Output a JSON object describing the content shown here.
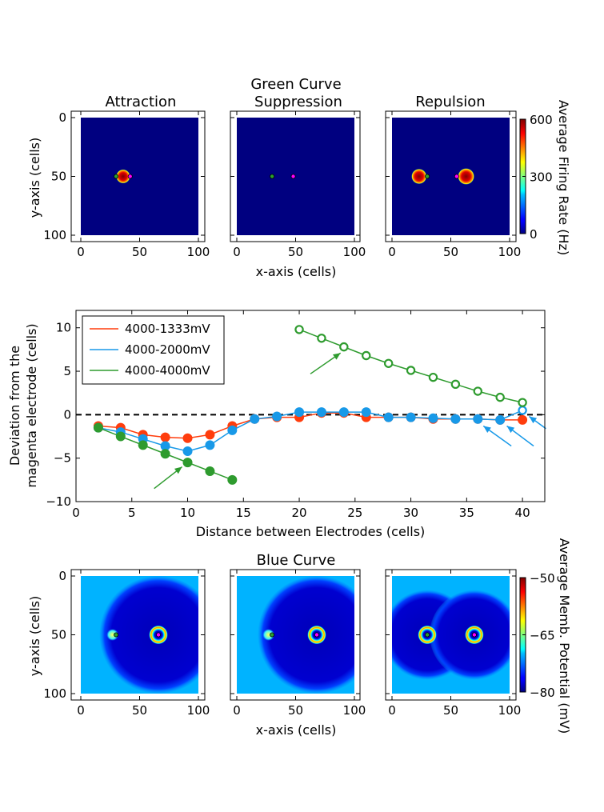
{
  "figure": {
    "top_title": "Green Curve",
    "bottom_title": "Blue Curve"
  },
  "chart_data": [
    {
      "type": "heatmap",
      "id": "firing-rate-maps",
      "panel_titles": [
        "Attraction",
        "Suppression",
        "Repulsion"
      ],
      "xlabel": "x-axis (cells)",
      "ylabel": "y-axis (cells)",
      "xlim": [
        0,
        100
      ],
      "ylim": [
        100,
        0
      ],
      "xticks": [
        0,
        50,
        100
      ],
      "yticks": [
        0,
        50,
        100
      ],
      "colorbar": {
        "label": "Average Firing Rate (Hz)",
        "range": [
          0,
          600
        ],
        "ticks": [
          0,
          300,
          600
        ]
      },
      "background_value": 0,
      "electrodes": [
        [
          {
            "x": 30,
            "y": 50,
            "color": "#2ca02c"
          },
          {
            "x": 42,
            "y": 50,
            "color": "#ff00ff"
          }
        ],
        [
          {
            "x": 30,
            "y": 50,
            "color": "#2ca02c"
          },
          {
            "x": 48,
            "y": 50,
            "color": "#ff00ff"
          }
        ],
        [
          {
            "x": 30,
            "y": 50,
            "color": "#2ca02c"
          },
          {
            "x": 55,
            "y": 50,
            "color": "#ff00ff"
          }
        ]
      ],
      "activity_spots": [
        [
          {
            "x": 36,
            "y": 50,
            "r": 6,
            "value": 600
          }
        ],
        [],
        [
          {
            "x": 23,
            "y": 50,
            "r": 6.5,
            "value": 600
          },
          {
            "x": 63,
            "y": 50,
            "r": 7,
            "value": 600
          }
        ]
      ]
    },
    {
      "type": "line",
      "id": "deviation-vs-distance",
      "xlabel": "Distance between Electrodes (cells)",
      "ylabel": [
        "Deviation from the",
        "magenta electrode (cells)"
      ],
      "xlim": [
        0,
        42
      ],
      "ylim": [
        -10,
        12
      ],
      "xticks": [
        0,
        5,
        10,
        15,
        20,
        25,
        30,
        35,
        40
      ],
      "yticks": [
        -10,
        -5,
        0,
        5,
        10
      ],
      "zero_line": true,
      "legend_position": "upper-left",
      "series": [
        {
          "name": "4000-1333mV",
          "color": "#ff3d0d",
          "x": [
            2,
            4,
            6,
            8,
            10,
            12,
            14,
            16,
            18,
            20,
            22,
            24,
            26,
            28,
            30,
            32,
            34,
            36,
            38,
            40
          ],
          "y": [
            -1.3,
            -1.5,
            -2.3,
            -2.6,
            -2.7,
            -2.3,
            -1.3,
            -0.5,
            -0.3,
            -0.3,
            0.2,
            0.2,
            -0.3,
            -0.3,
            -0.3,
            -0.5,
            -0.5,
            -0.5,
            -0.6,
            -0.6
          ],
          "filled": [
            true,
            true,
            true,
            true,
            true,
            true,
            true,
            true,
            true,
            true,
            true,
            true,
            true,
            true,
            true,
            true,
            true,
            true,
            true,
            true
          ]
        },
        {
          "name": "4000-2000mV",
          "color": "#1899e8",
          "x": [
            2,
            4,
            6,
            8,
            10,
            12,
            14,
            16,
            18,
            20,
            22,
            24,
            26,
            28,
            30,
            32,
            34,
            36,
            38,
            40
          ],
          "y": [
            -1.5,
            -2.0,
            -2.8,
            -3.6,
            -4.2,
            -3.5,
            -1.8,
            -0.5,
            -0.2,
            0.3,
            0.3,
            0.3,
            0.3,
            -0.3,
            -0.3,
            -0.4,
            -0.5,
            -0.5,
            -0.6,
            0.5
          ],
          "filled": [
            true,
            true,
            true,
            true,
            true,
            true,
            true,
            true,
            true,
            true,
            true,
            true,
            true,
            true,
            true,
            true,
            true,
            true,
            true,
            false
          ]
        },
        {
          "name": "4000-4000mV",
          "color": "#2e9b2e",
          "segments": [
            {
              "x": [
                2,
                4,
                6,
                8,
                10,
                12,
                14
              ],
              "y": [
                -1.5,
                -2.5,
                -3.5,
                -4.5,
                -5.5,
                -6.5,
                -7.5
              ],
              "filled": true
            },
            {
              "x": [
                20,
                22,
                24,
                26,
                28,
                30,
                32,
                34,
                36,
                38,
                40
              ],
              "y": [
                9.8,
                8.8,
                7.8,
                6.8,
                5.9,
                5.1,
                4.3,
                3.5,
                2.7,
                2.0,
                1.4
              ],
              "filled": false
            }
          ]
        }
      ],
      "annotations": [
        {
          "type": "arrow",
          "color": "#2e9b2e",
          "from": [
            7,
            -8.5
          ],
          "to": [
            9.5,
            -6
          ]
        },
        {
          "type": "arrow",
          "color": "#2e9b2e",
          "from": [
            21,
            4.7
          ],
          "to": [
            23.7,
            7.1
          ]
        },
        {
          "type": "arrow",
          "color": "#1899e8",
          "from": [
            39,
            -3.6
          ],
          "to": [
            36.5,
            -1.3
          ]
        },
        {
          "type": "arrow",
          "color": "#1899e8",
          "from": [
            41,
            -3.6
          ],
          "to": [
            38.6,
            -1.3
          ]
        },
        {
          "type": "arrow",
          "color": "#1899e8",
          "from": [
            42.1,
            -1.6
          ],
          "to": [
            40.6,
            -0.2
          ]
        }
      ]
    },
    {
      "type": "heatmap",
      "id": "membrane-potential-maps",
      "panel_titles": [],
      "xlabel": "x-axis (cells)",
      "ylabel": "y-axis (cells)",
      "xlim": [
        0,
        100
      ],
      "ylim": [
        100,
        0
      ],
      "xticks": [
        0,
        50,
        100
      ],
      "yticks": [
        0,
        50,
        100
      ],
      "colorbar": {
        "label": "Average Memb. Potential (mV)",
        "range": [
          -80,
          -50
        ],
        "ticks": [
          -80,
          -65,
          -50
        ]
      },
      "background_value": -71,
      "electrodes": [
        [
          {
            "x": 30,
            "y": 50,
            "color": "#2ca02c"
          },
          {
            "x": 66,
            "y": 50,
            "color": "#ff00ff"
          }
        ],
        [
          {
            "x": 30,
            "y": 50,
            "color": "#2ca02c"
          },
          {
            "x": 68,
            "y": 50,
            "color": "#ff00ff"
          }
        ],
        [
          {
            "x": 30,
            "y": 50,
            "color": "#2ca02c"
          },
          {
            "x": 70,
            "y": 50,
            "color": "#ff00ff"
          }
        ]
      ],
      "inhibition_zones": [
        [
          {
            "x": 66,
            "y": 50,
            "r": 50
          }
        ],
        [
          {
            "x": 68,
            "y": 50,
            "r": 50
          }
        ],
        [
          {
            "x": 30,
            "y": 50,
            "r": 38
          },
          {
            "x": 70,
            "y": 50,
            "r": 38
          }
        ]
      ],
      "active_rings": [
        [
          {
            "x": 66,
            "y": 50,
            "r": 8
          }
        ],
        [
          {
            "x": 68,
            "y": 50,
            "r": 8
          }
        ],
        [
          {
            "x": 30,
            "y": 50,
            "r": 8
          },
          {
            "x": 70,
            "y": 50,
            "r": 8
          }
        ]
      ],
      "faint_spots": [
        [
          {
            "x": 27,
            "y": 50,
            "r": 5
          }
        ],
        [
          {
            "x": 27,
            "y": 50,
            "r": 5
          }
        ],
        []
      ]
    }
  ]
}
